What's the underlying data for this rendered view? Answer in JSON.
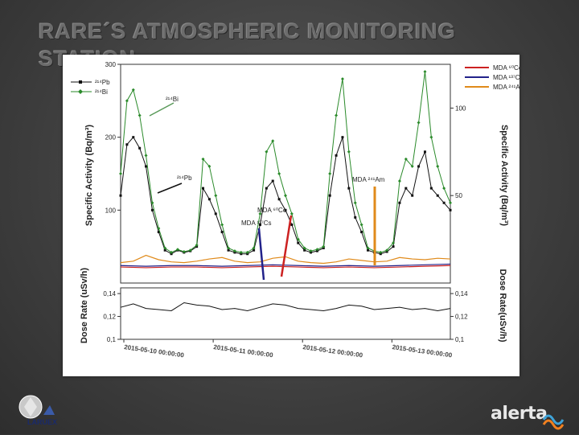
{
  "slide": {
    "title": "RARE´S ATMOSPHERIC MONITORING STATION",
    "logo_left_text": "LARUEX",
    "logo_right_text": "alerta"
  },
  "chart_data": {
    "type": "line",
    "x_ticks": [
      "2015-05-10 00:00:00",
      "2015-05-11 00:00:00",
      "2015-05-12 00:00:00",
      "2015-05-13 00:00:00"
    ],
    "upper_panel": {
      "ylabel_left": "Specific Activity (Bq/m³)",
      "ylabel_right": "Specific Activity (Bq/m³)",
      "left_ticks": [
        "100",
        "200",
        "300"
      ],
      "right_ticks": [
        "50",
        "100"
      ],
      "series": [
        {
          "name": "²¹⁴Pb",
          "color": "#111111",
          "marker": "square",
          "x": [
            0,
            2,
            4,
            6,
            8,
            10,
            12,
            14,
            16,
            18,
            20,
            22,
            24,
            26,
            28,
            30,
            32,
            34,
            36,
            38,
            40,
            42,
            44,
            46,
            48,
            50,
            52,
            54,
            56,
            58,
            60,
            62,
            64,
            66,
            68,
            70,
            72,
            74,
            76,
            78,
            80,
            82,
            84,
            86,
            88,
            90,
            92,
            94,
            96,
            98,
            100,
            102,
            104
          ],
          "y": [
            120,
            190,
            200,
            185,
            160,
            100,
            70,
            45,
            40,
            45,
            42,
            44,
            50,
            130,
            115,
            95,
            70,
            45,
            42,
            40,
            40,
            45,
            80,
            130,
            140,
            115,
            100,
            80,
            55,
            45,
            42,
            44,
            48,
            120,
            175,
            200,
            130,
            90,
            70,
            45,
            42,
            40,
            43,
            50,
            110,
            130,
            120,
            160,
            180,
            130,
            120,
            110,
            100
          ]
        },
        {
          "name": "²¹⁴Bi",
          "color": "#2a8a2a",
          "marker": "diamond",
          "x": [
            0,
            2,
            4,
            6,
            8,
            10,
            12,
            14,
            16,
            18,
            20,
            22,
            24,
            26,
            28,
            30,
            32,
            34,
            36,
            38,
            40,
            42,
            44,
            46,
            48,
            50,
            52,
            54,
            56,
            58,
            60,
            62,
            64,
            66,
            68,
            70,
            72,
            74,
            76,
            78,
            80,
            82,
            84,
            86,
            88,
            90,
            92,
            94,
            96,
            98,
            100,
            102,
            104
          ],
          "y": [
            150,
            250,
            265,
            230,
            175,
            110,
            75,
            48,
            42,
            46,
            43,
            45,
            52,
            170,
            160,
            120,
            80,
            48,
            44,
            42,
            42,
            48,
            95,
            180,
            195,
            150,
            120,
            95,
            60,
            48,
            44,
            46,
            50,
            150,
            230,
            280,
            180,
            110,
            80,
            48,
            44,
            42,
            45,
            55,
            140,
            170,
            160,
            220,
            290,
            200,
            160,
            130,
            110
          ]
        },
        {
          "name": "MDA ⁶⁰Co",
          "color": "#cc2222",
          "marker": "none",
          "x": [
            0,
            8,
            16,
            24,
            32,
            40,
            48,
            56,
            64,
            72,
            80,
            88,
            96,
            104
          ],
          "y": [
            22,
            21,
            22,
            22,
            21,
            22,
            23,
            22,
            21,
            22,
            21,
            22,
            23,
            24
          ]
        },
        {
          "name": "MDA ¹³⁷Cs",
          "color": "#22228a",
          "marker": "none",
          "x": [
            0,
            8,
            16,
            24,
            32,
            40,
            48,
            56,
            64,
            72,
            80,
            88,
            96,
            104
          ],
          "y": [
            24,
            23,
            24,
            24,
            23,
            24,
            25,
            24,
            23,
            24,
            23,
            24,
            25,
            26
          ]
        },
        {
          "name": "MDA ²⁴¹Am",
          "color": "#e08a1a",
          "marker": "none",
          "x": [
            0,
            4,
            8,
            12,
            16,
            20,
            24,
            28,
            32,
            36,
            40,
            44,
            48,
            52,
            56,
            60,
            64,
            68,
            72,
            76,
            80,
            84,
            88,
            92,
            96,
            100,
            104
          ],
          "y": [
            28,
            30,
            38,
            32,
            29,
            28,
            30,
            33,
            35,
            30,
            28,
            29,
            34,
            36,
            30,
            28,
            27,
            29,
            33,
            31,
            29,
            30,
            35,
            33,
            32,
            34,
            33
          ]
        }
      ],
      "annotations": [
        "²¹⁴Bi",
        "²¹⁴Pb",
        "MDA ⁶⁰Co",
        "MDA ¹³⁷Cs",
        "MDA ²⁴¹Am"
      ]
    },
    "lower_panel": {
      "ylabel_left": "Dose Rate (uSv/h)",
      "ylabel_right": "Dose Rate(uSv/h)",
      "left_ticks": [
        "0,1",
        "0,12",
        "0,14"
      ],
      "right_ticks": [
        "0,1",
        "0,12",
        "0,14"
      ],
      "series": [
        {
          "name": "Dose Rate",
          "color": "#111111",
          "marker": "none",
          "x": [
            0,
            4,
            8,
            12,
            16,
            20,
            24,
            28,
            32,
            36,
            40,
            44,
            48,
            52,
            56,
            60,
            64,
            68,
            72,
            76,
            80,
            84,
            88,
            92,
            96,
            100,
            104
          ],
          "y": [
            0.128,
            0.131,
            0.127,
            0.126,
            0.125,
            0.132,
            0.13,
            0.129,
            0.126,
            0.127,
            0.125,
            0.128,
            0.131,
            0.13,
            0.127,
            0.126,
            0.125,
            0.127,
            0.13,
            0.129,
            0.126,
            0.127,
            0.128,
            0.126,
            0.127,
            0.125,
            0.127
          ]
        }
      ]
    }
  }
}
